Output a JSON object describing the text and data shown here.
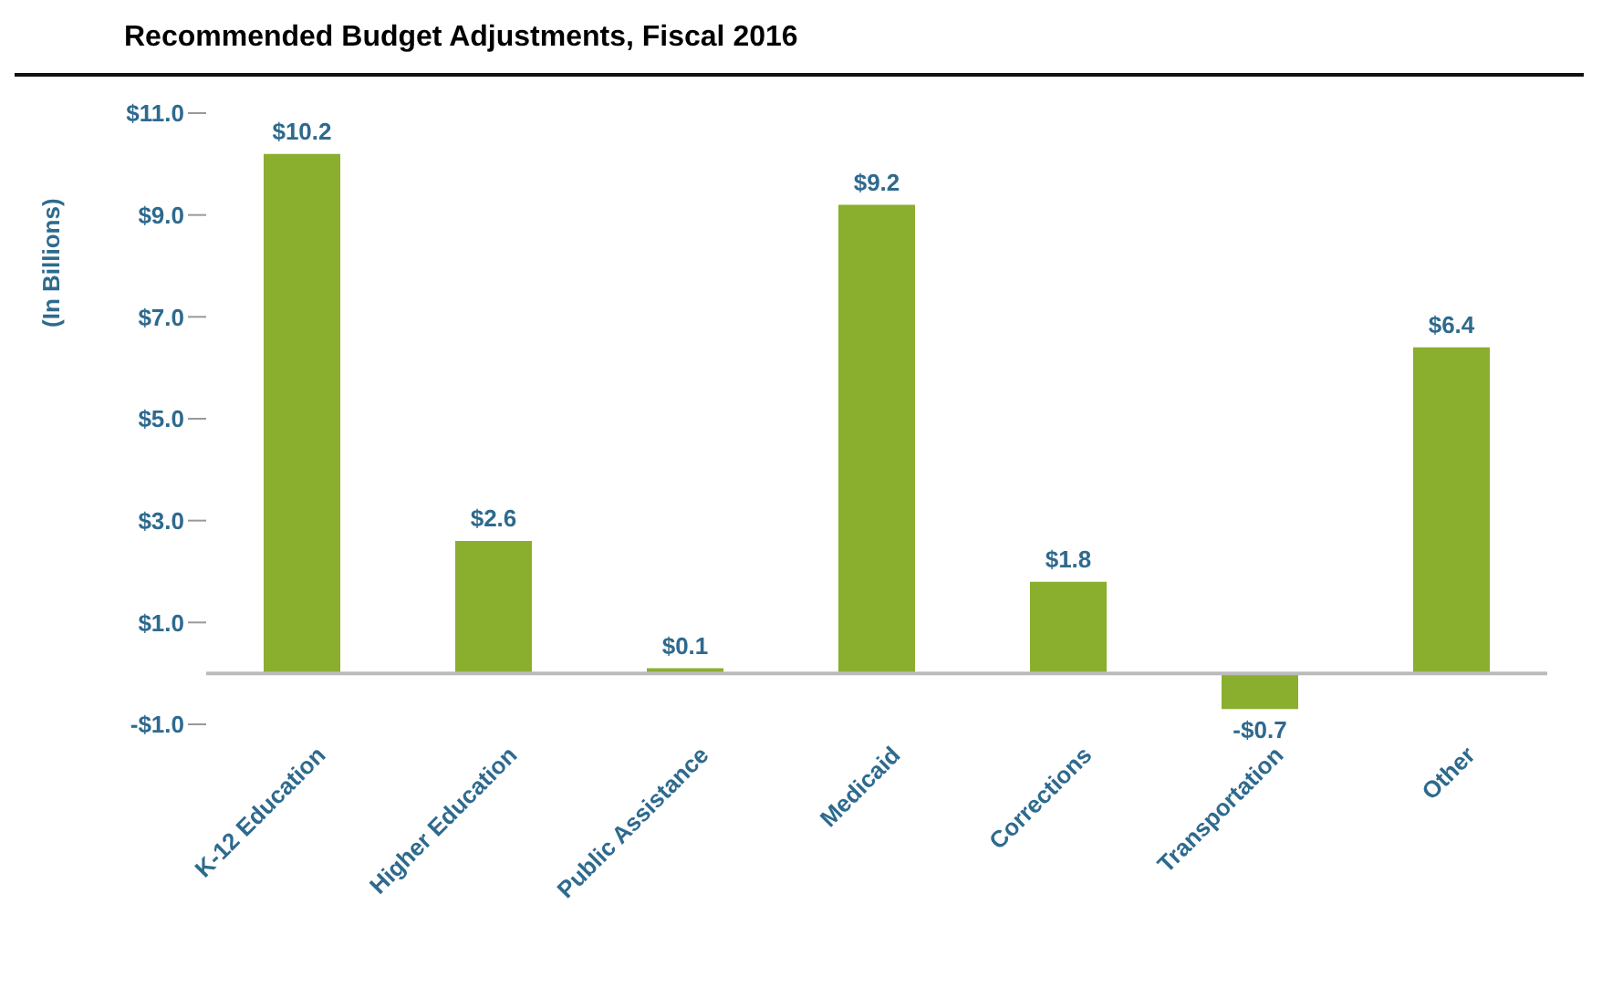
{
  "chart_data": {
    "type": "bar",
    "title": "Recommended Budget Adjustments, Fiscal 2016",
    "ylabel": "(In Billions)",
    "categories": [
      "K-12 Education",
      "Higher Education",
      "Public Assistance",
      "Medicaid",
      "Corrections",
      "Transportation",
      "Other"
    ],
    "values": [
      10.2,
      2.6,
      0.1,
      9.2,
      1.8,
      -0.7,
      6.4
    ],
    "value_labels": [
      "$10.2",
      "$2.6",
      "$0.1",
      "$9.2",
      "$1.8",
      "-$0.7",
      "$6.4"
    ],
    "color": "#8aae2e",
    "ylim": [
      -1,
      11
    ],
    "yticks": [
      {
        "value": -1,
        "label": "-$1.0"
      },
      {
        "value": 1,
        "label": "$1.0"
      },
      {
        "value": 3,
        "label": "$3.0"
      },
      {
        "value": 5,
        "label": "$5.0"
      },
      {
        "value": 7,
        "label": "$7.0"
      },
      {
        "value": 9,
        "label": "$9.0"
      },
      {
        "value": 11,
        "label": "$11.0"
      }
    ],
    "grid": false
  }
}
